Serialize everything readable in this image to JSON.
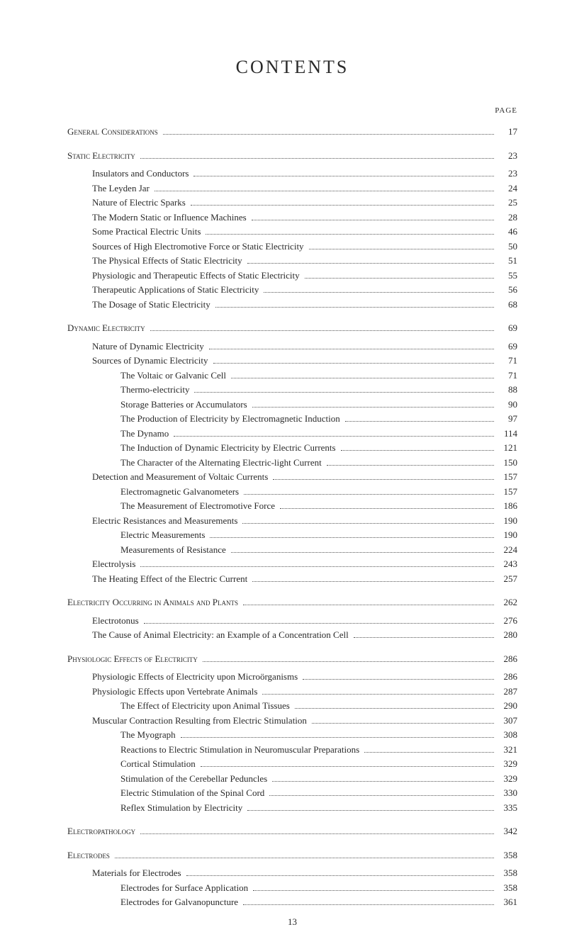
{
  "title": "CONTENTS",
  "pageHeaderLabel": "PAGE",
  "footerPageNumber": "13",
  "entries": [
    {
      "level": 0,
      "style": "chapter",
      "label": "General Considerations",
      "page": "17"
    },
    {
      "level": 0,
      "style": "chapter",
      "label": "Static Electricity",
      "page": "23"
    },
    {
      "level": 1,
      "style": "item",
      "label": "Insulators and Conductors",
      "page": "23"
    },
    {
      "level": 1,
      "style": "item",
      "label": "The Leyden Jar",
      "page": "24"
    },
    {
      "level": 1,
      "style": "item",
      "label": "Nature of Electric Sparks",
      "page": "25"
    },
    {
      "level": 1,
      "style": "item",
      "label": "The Modern Static or Influence Machines",
      "page": "28"
    },
    {
      "level": 1,
      "style": "item",
      "label": "Some Practical Electric Units",
      "page": "46"
    },
    {
      "level": 1,
      "style": "item",
      "label": "Sources of High Electromotive Force or Static Electricity",
      "page": "50"
    },
    {
      "level": 1,
      "style": "item",
      "label": "The Physical Effects of Static Electricity",
      "page": "51"
    },
    {
      "level": 1,
      "style": "item",
      "label": "Physiologic and Therapeutic Effects of Static Electricity",
      "page": "55"
    },
    {
      "level": 1,
      "style": "item",
      "label": "Therapeutic Applications of Static Electricity",
      "page": "56"
    },
    {
      "level": 1,
      "style": "item",
      "label": "The Dosage of Static Electricity",
      "page": "68"
    },
    {
      "level": 0,
      "style": "chapter",
      "label": "Dynamic Electricity",
      "page": "69"
    },
    {
      "level": 1,
      "style": "item",
      "label": "Nature of Dynamic Electricity",
      "page": "69"
    },
    {
      "level": 1,
      "style": "item",
      "label": "Sources of Dynamic Electricity",
      "page": "71"
    },
    {
      "level": 2,
      "style": "item",
      "label": "The Voltaic or Galvanic Cell",
      "page": "71"
    },
    {
      "level": 2,
      "style": "item",
      "label": "Thermo-electricity",
      "page": "88"
    },
    {
      "level": 2,
      "style": "item",
      "label": "Storage Batteries or Accumulators",
      "page": "90"
    },
    {
      "level": 2,
      "style": "item",
      "label": "The Production of Electricity by Electromagnetic Induction",
      "page": "97"
    },
    {
      "level": 2,
      "style": "item",
      "label": "The Dynamo",
      "page": "114"
    },
    {
      "level": 2,
      "style": "item",
      "label": "The Induction of Dynamic Electricity by Electric Currents",
      "page": "121"
    },
    {
      "level": 2,
      "style": "item",
      "label": "The Character of the Alternating Electric-light Current",
      "page": "150"
    },
    {
      "level": 1,
      "style": "item",
      "label": "Detection and Measurement of Voltaic Currents",
      "page": "157"
    },
    {
      "level": 2,
      "style": "item",
      "label": "Electromagnetic Galvanometers",
      "page": "157"
    },
    {
      "level": 2,
      "style": "item",
      "label": "The Measurement of Electromotive Force",
      "page": "186"
    },
    {
      "level": 1,
      "style": "item",
      "label": "Electric Resistances and Measurements",
      "page": "190"
    },
    {
      "level": 2,
      "style": "item",
      "label": "Electric Measurements",
      "page": "190"
    },
    {
      "level": 2,
      "style": "item",
      "label": "Measurements of Resistance",
      "page": "224"
    },
    {
      "level": 1,
      "style": "item",
      "label": "Electrolysis",
      "page": "243"
    },
    {
      "level": 1,
      "style": "item",
      "label": "The Heating Effect of the Electric Current",
      "page": "257"
    },
    {
      "level": 0,
      "style": "chapter",
      "label": "Electricity Occurring in Animals and Plants",
      "page": "262"
    },
    {
      "level": 1,
      "style": "item",
      "label": "Electrotonus",
      "page": "276"
    },
    {
      "level": 1,
      "style": "item",
      "label": "The Cause of Animal Electricity: an Example of a Concentration Cell",
      "page": "280"
    },
    {
      "level": 0,
      "style": "chapter",
      "label": "Physiologic Effects of Electricity",
      "page": "286"
    },
    {
      "level": 1,
      "style": "item",
      "label": "Physiologic Effects of Electricity upon Microörganisms",
      "page": "286"
    },
    {
      "level": 1,
      "style": "item",
      "label": "Physiologic Effects upon Vertebrate Animals",
      "page": "287"
    },
    {
      "level": 2,
      "style": "item",
      "label": "The Effect of Electricity upon Animal Tissues",
      "page": "290"
    },
    {
      "level": 1,
      "style": "item",
      "label": "Muscular Contraction Resulting from Electric Stimulation",
      "page": "307"
    },
    {
      "level": 2,
      "style": "item",
      "label": "The Myograph",
      "page": "308"
    },
    {
      "level": 2,
      "style": "item",
      "label": "Reactions to Electric Stimulation in Neuromuscular Preparations",
      "page": "321"
    },
    {
      "level": 2,
      "style": "item",
      "label": "Cortical Stimulation",
      "page": "329"
    },
    {
      "level": 2,
      "style": "item",
      "label": "Stimulation of the Cerebellar Peduncles",
      "page": "329"
    },
    {
      "level": 2,
      "style": "item",
      "label": "Electric Stimulation of the Spinal Cord",
      "page": "330"
    },
    {
      "level": 2,
      "style": "item",
      "label": "Reflex Stimulation by Electricity",
      "page": "335"
    },
    {
      "level": 0,
      "style": "chapter",
      "label": "Electropathology",
      "page": "342"
    },
    {
      "level": 0,
      "style": "chapter",
      "label": "Electrodes",
      "page": "358"
    },
    {
      "level": 1,
      "style": "item",
      "label": "Materials for Electrodes",
      "page": "358"
    },
    {
      "level": 2,
      "style": "item",
      "label": "Electrodes for Surface Application",
      "page": "358"
    },
    {
      "level": 2,
      "style": "item",
      "label": "Electrodes for Galvanopuncture",
      "page": "361"
    }
  ]
}
